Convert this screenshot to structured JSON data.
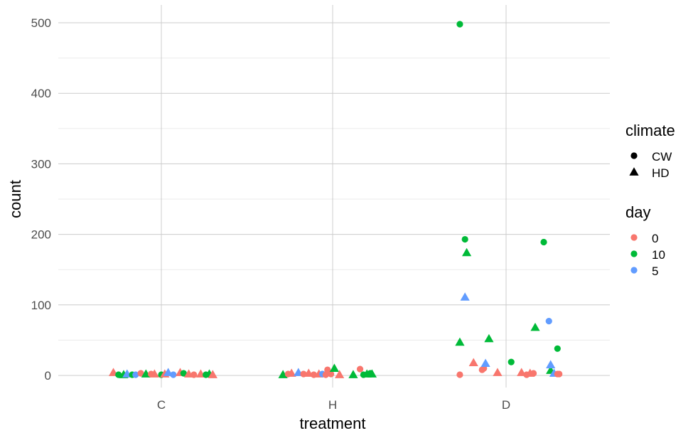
{
  "chart_data": {
    "type": "scatter",
    "xlabel": "treatment",
    "ylabel": "count",
    "categories": [
      "C",
      "H",
      "D"
    ],
    "ylim": [
      -5,
      525
    ],
    "yticks": [
      0,
      100,
      200,
      300,
      400,
      500
    ],
    "ytick_labels": [
      "0",
      "100",
      "200",
      "300",
      "400",
      "500"
    ],
    "grid": true,
    "jitter": true,
    "legend_placement": "right",
    "legends": {
      "climate": {
        "title": "climate",
        "entries": [
          {
            "label": "CW",
            "shape": "circle"
          },
          {
            "label": "HD",
            "shape": "triangle"
          }
        ]
      },
      "day": {
        "title": "day",
        "entries": [
          {
            "label": "0",
            "color": "#F8766D"
          },
          {
            "label": "10",
            "color": "#00BA38"
          },
          {
            "label": "5",
            "color": "#619CFF"
          }
        ]
      }
    },
    "points": [
      {
        "treatment": "C",
        "x": -0.28,
        "y": 4,
        "climate": "HD",
        "day": "0"
      },
      {
        "treatment": "C",
        "x": -0.25,
        "y": 1,
        "climate": "CW",
        "day": "10"
      },
      {
        "treatment": "C",
        "x": -0.22,
        "y": 1,
        "climate": "HD",
        "day": "10"
      },
      {
        "treatment": "C",
        "x": -0.2,
        "y": 2,
        "climate": "HD",
        "day": "5"
      },
      {
        "treatment": "C",
        "x": -0.17,
        "y": 1,
        "climate": "CW",
        "day": "10"
      },
      {
        "treatment": "C",
        "x": -0.15,
        "y": 1,
        "climate": "CW",
        "day": "5"
      },
      {
        "treatment": "C",
        "x": -0.12,
        "y": 3,
        "climate": "CW",
        "day": "0"
      },
      {
        "treatment": "C",
        "x": -0.09,
        "y": 2,
        "climate": "HD",
        "day": "10"
      },
      {
        "treatment": "C",
        "x": -0.06,
        "y": 2,
        "climate": "CW",
        "day": "0"
      },
      {
        "treatment": "C",
        "x": -0.04,
        "y": 2,
        "climate": "HD",
        "day": "0"
      },
      {
        "treatment": "C",
        "x": 0.0,
        "y": 1,
        "climate": "CW",
        "day": "10"
      },
      {
        "treatment": "C",
        "x": 0.02,
        "y": 2,
        "climate": "HD",
        "day": "0"
      },
      {
        "treatment": "C",
        "x": 0.04,
        "y": 4,
        "climate": "HD",
        "day": "5"
      },
      {
        "treatment": "C",
        "x": 0.07,
        "y": 1,
        "climate": "CW",
        "day": "5"
      },
      {
        "treatment": "C",
        "x": 0.11,
        "y": 4,
        "climate": "HD",
        "day": "0"
      },
      {
        "treatment": "C",
        "x": 0.13,
        "y": 3,
        "climate": "CW",
        "day": "10"
      },
      {
        "treatment": "C",
        "x": 0.16,
        "y": 2,
        "climate": "HD",
        "day": "0"
      },
      {
        "treatment": "C",
        "x": 0.19,
        "y": 1,
        "climate": "CW",
        "day": "0"
      },
      {
        "treatment": "C",
        "x": 0.23,
        "y": 2,
        "climate": "HD",
        "day": "0"
      },
      {
        "treatment": "C",
        "x": 0.26,
        "y": 1,
        "climate": "CW",
        "day": "10"
      },
      {
        "treatment": "C",
        "x": 0.28,
        "y": 2,
        "climate": "HD",
        "day": "10"
      },
      {
        "treatment": "C",
        "x": 0.3,
        "y": 1,
        "climate": "HD",
        "day": "0"
      },
      {
        "treatment": "H",
        "x": -0.29,
        "y": 1,
        "climate": "HD",
        "day": "10"
      },
      {
        "treatment": "H",
        "x": -0.26,
        "y": 2,
        "climate": "CW",
        "day": "0"
      },
      {
        "treatment": "H",
        "x": -0.24,
        "y": 3,
        "climate": "HD",
        "day": "0"
      },
      {
        "treatment": "H",
        "x": -0.2,
        "y": 4,
        "climate": "HD",
        "day": "5"
      },
      {
        "treatment": "H",
        "x": -0.17,
        "y": 2,
        "climate": "CW",
        "day": "0"
      },
      {
        "treatment": "H",
        "x": -0.14,
        "y": 3,
        "climate": "HD",
        "day": "0"
      },
      {
        "treatment": "H",
        "x": -0.11,
        "y": 1,
        "climate": "CW",
        "day": "0"
      },
      {
        "treatment": "H",
        "x": -0.08,
        "y": 2,
        "climate": "HD",
        "day": "0"
      },
      {
        "treatment": "H",
        "x": -0.06,
        "y": 2,
        "climate": "CW",
        "day": "5"
      },
      {
        "treatment": "H",
        "x": -0.04,
        "y": 1,
        "climate": "CW",
        "day": "0"
      },
      {
        "treatment": "H",
        "x": -0.03,
        "y": 8,
        "climate": "CW",
        "day": "0"
      },
      {
        "treatment": "H",
        "x": -0.01,
        "y": 2,
        "climate": "CW",
        "day": "0"
      },
      {
        "treatment": "H",
        "x": 0.01,
        "y": 10,
        "climate": "HD",
        "day": "10"
      },
      {
        "treatment": "H",
        "x": 0.04,
        "y": 1,
        "climate": "HD",
        "day": "0"
      },
      {
        "treatment": "H",
        "x": 0.12,
        "y": 1,
        "climate": "HD",
        "day": "10"
      },
      {
        "treatment": "H",
        "x": 0.16,
        "y": 9,
        "climate": "CW",
        "day": "0"
      },
      {
        "treatment": "H",
        "x": 0.18,
        "y": 1,
        "climate": "CW",
        "day": "10"
      },
      {
        "treatment": "H",
        "x": 0.2,
        "y": 2,
        "climate": "HD",
        "day": "10"
      },
      {
        "treatment": "H",
        "x": 0.22,
        "y": 3,
        "climate": "CW",
        "day": "10"
      },
      {
        "treatment": "H",
        "x": 0.23,
        "y": 2,
        "climate": "HD",
        "day": "10"
      },
      {
        "treatment": "D",
        "x": -0.27,
        "y": 498,
        "climate": "CW",
        "day": "10"
      },
      {
        "treatment": "D",
        "x": -0.27,
        "y": 47,
        "climate": "HD",
        "day": "10"
      },
      {
        "treatment": "D",
        "x": -0.27,
        "y": 1,
        "climate": "CW",
        "day": "0"
      },
      {
        "treatment": "D",
        "x": -0.24,
        "y": 193,
        "climate": "CW",
        "day": "10"
      },
      {
        "treatment": "D",
        "x": -0.23,
        "y": 174,
        "climate": "HD",
        "day": "10"
      },
      {
        "treatment": "D",
        "x": -0.24,
        "y": 111,
        "climate": "HD",
        "day": "5"
      },
      {
        "treatment": "D",
        "x": -0.19,
        "y": 18,
        "climate": "HD",
        "day": "0"
      },
      {
        "treatment": "D",
        "x": -0.14,
        "y": 8,
        "climate": "CW",
        "day": "0"
      },
      {
        "treatment": "D",
        "x": -0.13,
        "y": 10,
        "climate": "CW",
        "day": "0"
      },
      {
        "treatment": "D",
        "x": -0.12,
        "y": 17,
        "climate": "HD",
        "day": "5"
      },
      {
        "treatment": "D",
        "x": -0.1,
        "y": 52,
        "climate": "HD",
        "day": "10"
      },
      {
        "treatment": "D",
        "x": -0.05,
        "y": 4,
        "climate": "HD",
        "day": "0"
      },
      {
        "treatment": "D",
        "x": 0.03,
        "y": 19,
        "climate": "CW",
        "day": "10"
      },
      {
        "treatment": "D",
        "x": 0.09,
        "y": 4,
        "climate": "HD",
        "day": "0"
      },
      {
        "treatment": "D",
        "x": 0.12,
        "y": 1,
        "climate": "CW",
        "day": "0"
      },
      {
        "treatment": "D",
        "x": 0.14,
        "y": 3,
        "climate": "HD",
        "day": "0"
      },
      {
        "treatment": "D",
        "x": 0.16,
        "y": 3,
        "climate": "CW",
        "day": "0"
      },
      {
        "treatment": "D",
        "x": 0.17,
        "y": 68,
        "climate": "HD",
        "day": "10"
      },
      {
        "treatment": "D",
        "x": 0.22,
        "y": 189,
        "climate": "CW",
        "day": "10"
      },
      {
        "treatment": "D",
        "x": 0.25,
        "y": 77,
        "climate": "CW",
        "day": "5"
      },
      {
        "treatment": "D",
        "x": 0.26,
        "y": 7,
        "climate": "HD",
        "day": "10"
      },
      {
        "treatment": "D",
        "x": 0.26,
        "y": 15,
        "climate": "HD",
        "day": "5"
      },
      {
        "treatment": "D",
        "x": 0.28,
        "y": 3,
        "climate": "HD",
        "day": "5"
      },
      {
        "treatment": "D",
        "x": 0.31,
        "y": 2,
        "climate": "CW",
        "day": "0"
      },
      {
        "treatment": "D",
        "x": 0.3,
        "y": 2,
        "climate": "CW",
        "day": "0"
      },
      {
        "treatment": "D",
        "x": 0.3,
        "y": 38,
        "climate": "CW",
        "day": "10"
      }
    ]
  }
}
